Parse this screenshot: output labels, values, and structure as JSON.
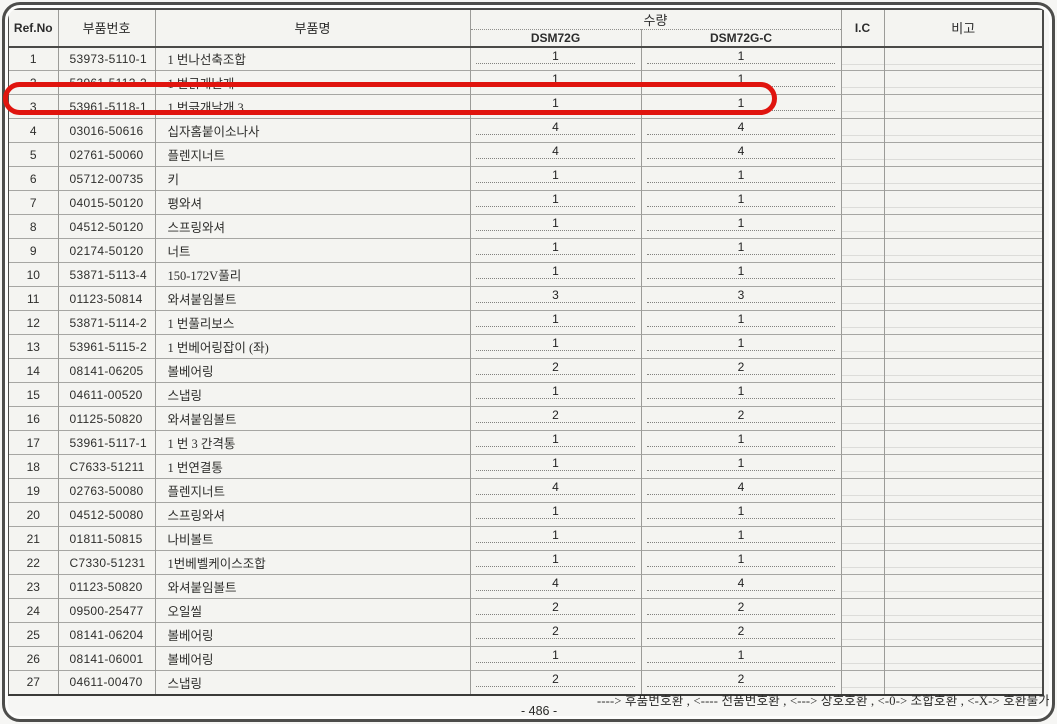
{
  "page": {
    "footer_legend": "----> 후품번호환 , <---- 전품번호환 , <---> 상호호환 , <-0-> 조합호환 , <-X-> 호환불가",
    "page_number": "- 486 -"
  },
  "highlight": {
    "highlighted_ref_no": "3",
    "color": "#e0140e"
  },
  "table": {
    "headers": {
      "ref_no": "Ref.No",
      "part_no": "부품번호",
      "part_name": "부품명",
      "qty_group": "수량",
      "qty_cols": [
        "DSM72G",
        "DSM72G-C"
      ],
      "ic": "I.C",
      "remarks": "비고"
    },
    "rows": [
      {
        "ref_no": "1",
        "part_no": "53973-5110-1",
        "name": "1 번나선축조합",
        "qty_dsm72g": "1",
        "qty_dsm72gc": "1",
        "ic": "",
        "remarks": ""
      },
      {
        "ref_no": "2",
        "part_no": "53961-5112-2",
        "name": "1 번긁개날개",
        "qty_dsm72g": "1",
        "qty_dsm72gc": "1",
        "ic": "",
        "remarks": ""
      },
      {
        "ref_no": "3",
        "part_no": "53961-5118-1",
        "name": "1 번긁개날개 3",
        "qty_dsm72g": "1",
        "qty_dsm72gc": "1",
        "ic": "",
        "remarks": ""
      },
      {
        "ref_no": "4",
        "part_no": "03016-50616",
        "name": "십자홈붙이소나사",
        "qty_dsm72g": "4",
        "qty_dsm72gc": "4",
        "ic": "",
        "remarks": ""
      },
      {
        "ref_no": "5",
        "part_no": "02761-50060",
        "name": "플렌지너트",
        "qty_dsm72g": "4",
        "qty_dsm72gc": "4",
        "ic": "",
        "remarks": ""
      },
      {
        "ref_no": "6",
        "part_no": "05712-00735",
        "name": "키",
        "qty_dsm72g": "1",
        "qty_dsm72gc": "1",
        "ic": "",
        "remarks": ""
      },
      {
        "ref_no": "7",
        "part_no": "04015-50120",
        "name": "평와셔",
        "qty_dsm72g": "1",
        "qty_dsm72gc": "1",
        "ic": "",
        "remarks": ""
      },
      {
        "ref_no": "8",
        "part_no": "04512-50120",
        "name": "스프링와셔",
        "qty_dsm72g": "1",
        "qty_dsm72gc": "1",
        "ic": "",
        "remarks": ""
      },
      {
        "ref_no": "9",
        "part_no": "02174-50120",
        "name": "너트",
        "qty_dsm72g": "1",
        "qty_dsm72gc": "1",
        "ic": "",
        "remarks": ""
      },
      {
        "ref_no": "10",
        "part_no": "53871-5113-4",
        "name": "150-172V풀리",
        "qty_dsm72g": "1",
        "qty_dsm72gc": "1",
        "ic": "",
        "remarks": ""
      },
      {
        "ref_no": "11",
        "part_no": "01123-50814",
        "name": "와셔붙임볼트",
        "qty_dsm72g": "3",
        "qty_dsm72gc": "3",
        "ic": "",
        "remarks": ""
      },
      {
        "ref_no": "12",
        "part_no": "53871-5114-2",
        "name": "1 번풀리보스",
        "qty_dsm72g": "1",
        "qty_dsm72gc": "1",
        "ic": "",
        "remarks": ""
      },
      {
        "ref_no": "13",
        "part_no": "53961-5115-2",
        "name": "1 번베어링잡이 (좌)",
        "qty_dsm72g": "1",
        "qty_dsm72gc": "1",
        "ic": "",
        "remarks": ""
      },
      {
        "ref_no": "14",
        "part_no": "08141-06205",
        "name": "볼베어링",
        "qty_dsm72g": "2",
        "qty_dsm72gc": "2",
        "ic": "",
        "remarks": ""
      },
      {
        "ref_no": "15",
        "part_no": "04611-00520",
        "name": "스냅링",
        "qty_dsm72g": "1",
        "qty_dsm72gc": "1",
        "ic": "",
        "remarks": ""
      },
      {
        "ref_no": "16",
        "part_no": "01125-50820",
        "name": "와셔붙임볼트",
        "qty_dsm72g": "2",
        "qty_dsm72gc": "2",
        "ic": "",
        "remarks": ""
      },
      {
        "ref_no": "17",
        "part_no": "53961-5117-1",
        "name": "1 번 3 간격통",
        "qty_dsm72g": "1",
        "qty_dsm72gc": "1",
        "ic": "",
        "remarks": ""
      },
      {
        "ref_no": "18",
        "part_no": "C7633-51211",
        "name": "1 번연결통",
        "qty_dsm72g": "1",
        "qty_dsm72gc": "1",
        "ic": "",
        "remarks": ""
      },
      {
        "ref_no": "19",
        "part_no": "02763-50080",
        "name": "플렌지너트",
        "qty_dsm72g": "4",
        "qty_dsm72gc": "4",
        "ic": "",
        "remarks": ""
      },
      {
        "ref_no": "20",
        "part_no": "04512-50080",
        "name": "스프링와셔",
        "qty_dsm72g": "1",
        "qty_dsm72gc": "1",
        "ic": "",
        "remarks": ""
      },
      {
        "ref_no": "21",
        "part_no": "01811-50815",
        "name": "나비볼트",
        "qty_dsm72g": "1",
        "qty_dsm72gc": "1",
        "ic": "",
        "remarks": ""
      },
      {
        "ref_no": "22",
        "part_no": "C7330-51231",
        "name": "1번베벨케이스조합",
        "qty_dsm72g": "1",
        "qty_dsm72gc": "1",
        "ic": "",
        "remarks": ""
      },
      {
        "ref_no": "23",
        "part_no": "01123-50820",
        "name": "와셔붙임볼트",
        "qty_dsm72g": "4",
        "qty_dsm72gc": "4",
        "ic": "",
        "remarks": ""
      },
      {
        "ref_no": "24",
        "part_no": "09500-25477",
        "name": "오일씰",
        "qty_dsm72g": "2",
        "qty_dsm72gc": "2",
        "ic": "",
        "remarks": ""
      },
      {
        "ref_no": "25",
        "part_no": "08141-06204",
        "name": "볼베어링",
        "qty_dsm72g": "2",
        "qty_dsm72gc": "2",
        "ic": "",
        "remarks": ""
      },
      {
        "ref_no": "26",
        "part_no": "08141-06001",
        "name": "볼베어링",
        "qty_dsm72g": "1",
        "qty_dsm72gc": "1",
        "ic": "",
        "remarks": ""
      },
      {
        "ref_no": "27",
        "part_no": "04611-00470",
        "name": "스냅링",
        "qty_dsm72g": "2",
        "qty_dsm72gc": "2",
        "ic": "",
        "remarks": ""
      }
    ]
  }
}
